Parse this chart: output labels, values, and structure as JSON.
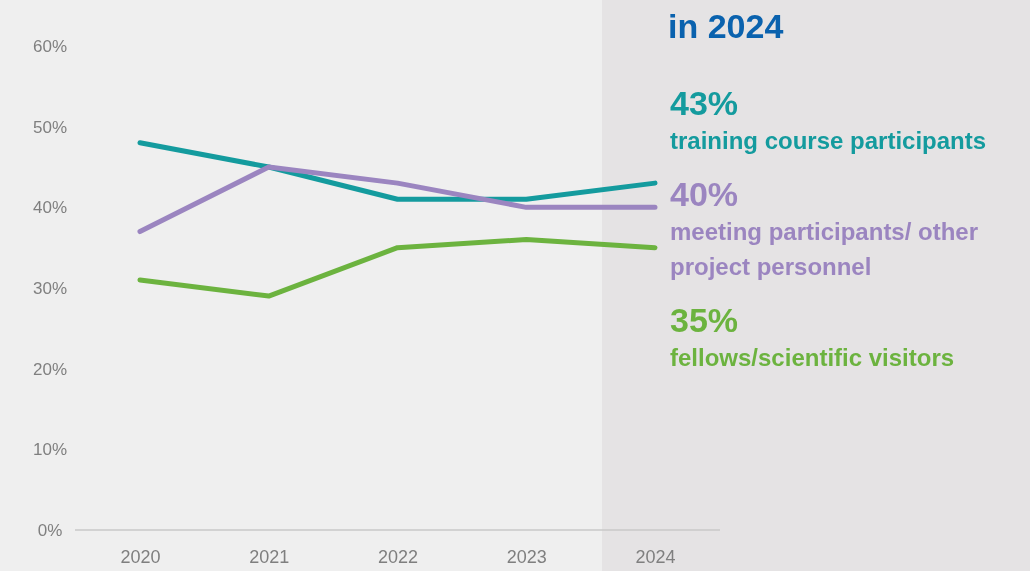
{
  "chart_data": {
    "type": "line",
    "title": "in 2024",
    "categories": [
      "2020",
      "2021",
      "2022",
      "2023",
      "2024"
    ],
    "series": [
      {
        "name": "training course participants",
        "color": "#149b9e",
        "values": [
          48,
          45,
          41,
          41,
          43
        ],
        "value_labels": [
          null,
          null,
          null,
          null,
          "43%"
        ]
      },
      {
        "name": "meeting participants/ other project personnel",
        "color": "#9b85c0",
        "values": [
          37,
          45,
          43,
          40,
          40
        ],
        "value_labels": [
          null,
          null,
          null,
          null,
          "40%"
        ]
      },
      {
        "name": "fellows/scientific visitors",
        "color": "#6cb33f",
        "values": [
          31,
          29,
          35,
          36,
          35
        ],
        "value_labels": [
          null,
          null,
          null,
          null,
          "35%"
        ]
      }
    ],
    "ylim": [
      0,
      60
    ],
    "yticks": [
      {
        "value": 0,
        "label": "0%"
      },
      {
        "value": 10,
        "label": "10%"
      },
      {
        "value": 20,
        "label": "20%"
      },
      {
        "value": 30,
        "label": "30%"
      },
      {
        "value": 40,
        "label": "40%"
      },
      {
        "value": 50,
        "label": "50%"
      },
      {
        "value": 60,
        "label": "60%"
      }
    ],
    "grid": false,
    "legend": "right",
    "marker": "none",
    "line_style": "solid"
  }
}
